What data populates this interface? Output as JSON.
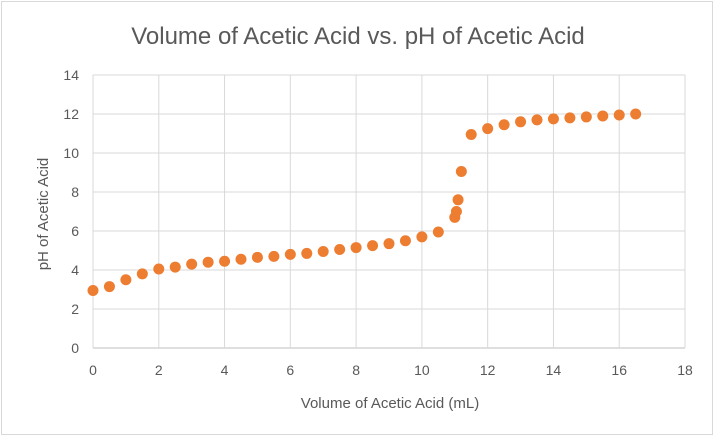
{
  "chart_data": {
    "type": "scatter",
    "title": "Volume of Acetic Acid vs. pH of Acetic Acid",
    "xlabel": "Volume of Acetic Acid (mL)",
    "ylabel": "pH of Acetic Acid",
    "xlim": [
      0,
      18
    ],
    "ylim": [
      0,
      14
    ],
    "xticks": [
      0,
      2,
      4,
      6,
      8,
      10,
      12,
      14,
      16,
      18
    ],
    "yticks": [
      0,
      2,
      4,
      6,
      8,
      10,
      12,
      14
    ],
    "grid": true,
    "legend": "none",
    "marker_color": "#ED7D31",
    "series": [
      {
        "x": [
          0,
          0.5,
          1,
          1.5,
          2,
          2.5,
          3,
          3.5,
          4,
          4.5,
          5,
          5.5,
          6,
          6.5,
          7,
          7.5,
          8,
          8.5,
          9,
          9.5,
          10,
          10.5,
          11,
          11.05,
          11.1,
          11.2,
          11.5,
          12,
          12.5,
          13,
          13.5,
          14,
          14.5,
          15,
          15.5,
          16,
          16.5
        ],
        "y": [
          2.95,
          3.15,
          3.5,
          3.8,
          4.05,
          4.15,
          4.3,
          4.4,
          4.45,
          4.55,
          4.65,
          4.7,
          4.8,
          4.85,
          4.95,
          5.05,
          5.15,
          5.25,
          5.35,
          5.5,
          5.7,
          5.95,
          6.7,
          7.0,
          7.6,
          9.05,
          10.95,
          11.25,
          11.45,
          11.6,
          11.7,
          11.75,
          11.8,
          11.85,
          11.9,
          11.95,
          12.0
        ]
      }
    ]
  }
}
